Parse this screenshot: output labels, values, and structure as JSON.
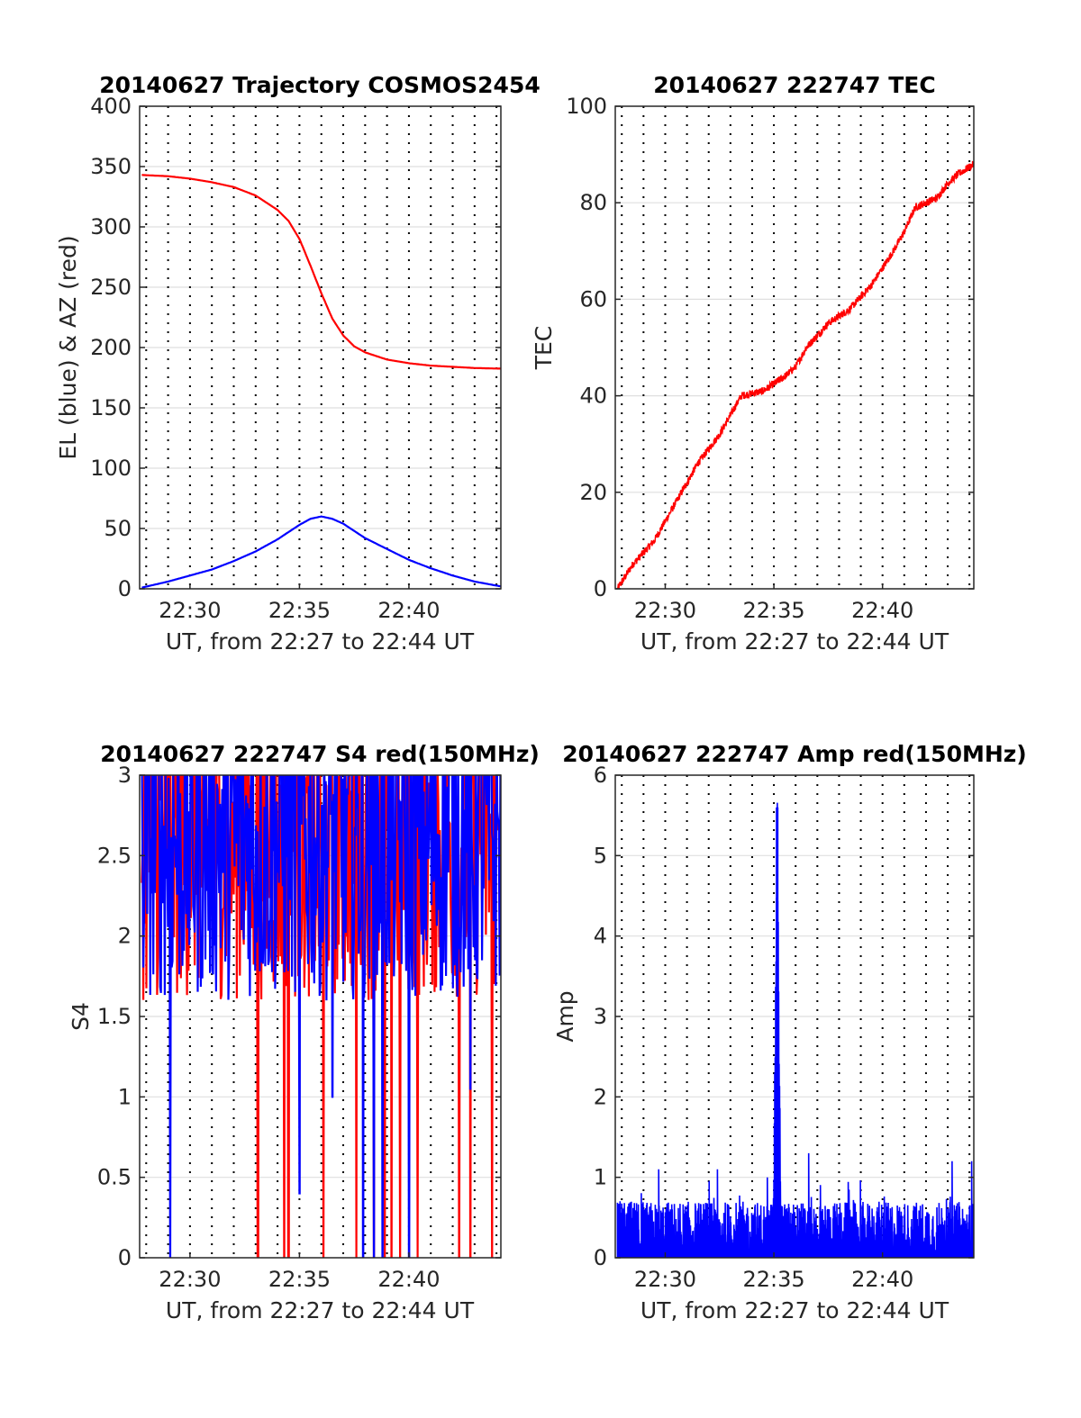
{
  "figure_background": "#ffffff",
  "colors": {
    "red_series": "#ff0000",
    "blue_series": "#0000ff",
    "axis": "#262626",
    "grid": "#262626"
  },
  "chart_data": [
    {
      "id": "trajectory",
      "type": "line",
      "title": "20140627 Trajectory COSMOS2454",
      "xlabel": "UT, from 22:27 to 22:44 UT",
      "ylabel": "EL (blue) & AZ (red)",
      "x_unit": "minutes after 22:00 UT",
      "xlim": [
        27.7,
        44.2
      ],
      "ylim": [
        0,
        400
      ],
      "yticks": [
        0,
        50,
        100,
        150,
        200,
        250,
        300,
        350,
        400
      ],
      "ytick_labels": [
        "0",
        "50",
        "100",
        "150",
        "200",
        "250",
        "300",
        "350",
        "400"
      ],
      "xticks": [
        30,
        35,
        40
      ],
      "xtick_labels": [
        "22:30",
        "22:35",
        "22:40"
      ],
      "grid": {
        "y": "solid",
        "x": "dotted",
        "x_dotted_every_min": 1
      },
      "series": [
        {
          "name": "AZ (red)",
          "color": "#ff0000",
          "x": [
            27.8,
            29,
            30,
            31,
            32,
            33,
            34,
            34.5,
            35,
            35.5,
            36,
            36.5,
            37,
            37.5,
            38,
            39,
            40,
            41,
            42,
            43,
            44.2
          ],
          "y": [
            343,
            342,
            340,
            337,
            333,
            326,
            314,
            305,
            290,
            268,
            245,
            224,
            210,
            201,
            196,
            190,
            187,
            185,
            184,
            183,
            182.5
          ]
        },
        {
          "name": "EL (blue)",
          "color": "#0000ff",
          "x": [
            27.8,
            29,
            30,
            31,
            32,
            33,
            34,
            34.5,
            35,
            35.5,
            36,
            36.5,
            37,
            37.5,
            38,
            39,
            40,
            41,
            42,
            43,
            44.2
          ],
          "y": [
            1,
            6,
            11,
            16,
            23,
            31,
            41,
            47,
            53,
            58,
            60,
            58,
            54,
            48,
            42,
            33,
            24,
            17,
            11,
            6,
            2
          ]
        }
      ]
    },
    {
      "id": "tec",
      "type": "line",
      "title": "20140627 222747 TEC",
      "xlabel": "UT, from 22:27 to 22:44 UT",
      "ylabel": "TEC",
      "x_unit": "minutes after 22:00 UT",
      "xlim": [
        27.7,
        44.2
      ],
      "ylim": [
        0,
        100
      ],
      "yticks": [
        0,
        20,
        40,
        60,
        80,
        100
      ],
      "ytick_labels": [
        "0",
        "20",
        "40",
        "60",
        "80",
        "100"
      ],
      "xticks": [
        30,
        35,
        40
      ],
      "xtick_labels": [
        "22:30",
        "22:35",
        "22:40"
      ],
      "grid": {
        "y": "solid",
        "x": "dotted",
        "x_dotted_every_min": 1
      },
      "series": [
        {
          "color": "#ff0000",
          "noise_amplitude": 0.8,
          "x": [
            27.8,
            28.5,
            29.5,
            30.5,
            31.5,
            32.5,
            33,
            33.5,
            34.5,
            35.5,
            36,
            36.5,
            37.5,
            38.5,
            39.5,
            40.5,
            41,
            41.5,
            42.5,
            43,
            43.5,
            44.2
          ],
          "y": [
            0,
            5,
            10,
            18,
            26,
            32,
            36,
            40,
            41,
            44,
            46,
            50,
            55,
            58,
            63,
            70,
            74,
            79,
            81,
            84,
            86,
            88
          ]
        }
      ]
    },
    {
      "id": "s4",
      "type": "line",
      "title": "20140627 222747 S4 red(150MHz)",
      "xlabel": "UT, from 22:27 to 22:44 UT",
      "ylabel": "S4",
      "x_unit": "minutes after 22:00 UT",
      "xlim": [
        27.7,
        44.2
      ],
      "ylim": [
        0,
        3
      ],
      "yticks": [
        0,
        0.5,
        1,
        1.5,
        2,
        2.5,
        3
      ],
      "ytick_labels": [
        "0",
        "0.5",
        "1",
        "1.5",
        "2",
        "2.5",
        "3"
      ],
      "xticks": [
        30,
        35,
        40
      ],
      "xtick_labels": [
        "22:30",
        "22:35",
        "22:40"
      ],
      "grid": {
        "y": "solid",
        "x": "dotted",
        "x_dotted_every_min": 1
      },
      "series": [
        {
          "name": "150MHz",
          "color": "#ff0000",
          "values_range": [
            1.6,
            3
          ],
          "dropouts_to_zero_at": [
            33.1,
            34.3,
            34.5,
            36.1,
            37.6,
            38.4,
            38.9,
            39.2,
            39.6,
            40.4,
            42.3,
            42.8,
            43.8
          ]
        },
        {
          "color": "#0000ff",
          "values_range": [
            1.6,
            3
          ],
          "dips": [
            {
              "x": 29.1,
              "y": 0
            },
            {
              "x": 35.0,
              "y": 0.4
            },
            {
              "x": 36.5,
              "y": 1.0
            },
            {
              "x": 37.9,
              "y": 0
            },
            {
              "x": 38.4,
              "y": 0
            },
            {
              "x": 38.8,
              "y": 0
            },
            {
              "x": 40.0,
              "y": 0
            },
            {
              "x": 42.8,
              "y": 1.05
            }
          ]
        }
      ]
    },
    {
      "id": "amp",
      "type": "line",
      "title": "20140627 222747 Amp red(150MHz)",
      "xlabel": "UT, from 22:27 to 22:44 UT",
      "ylabel": "Amp",
      "x_unit": "minutes after 22:00 UT",
      "xlim": [
        27.7,
        44.2
      ],
      "ylim": [
        0,
        6
      ],
      "yticks": [
        0,
        1,
        2,
        3,
        4,
        5,
        6
      ],
      "ytick_labels": [
        "0",
        "1",
        "2",
        "3",
        "4",
        "5",
        "6"
      ],
      "xticks": [
        30,
        35,
        40
      ],
      "xtick_labels": [
        "22:30",
        "22:35",
        "22:40"
      ],
      "grid": {
        "y": "solid",
        "x": "dotted",
        "x_dotted_every_min": 1
      },
      "series": [
        {
          "name": "150MHz",
          "color": "#0000ff",
          "baseline_max": 0.7,
          "spike": {
            "x": 35.15,
            "y_max": 5.6
          },
          "peaks": [
            {
              "x": 29.7,
              "y": 1.1
            },
            {
              "x": 32.4,
              "y": 1.1
            },
            {
              "x": 34.7,
              "y": 1.0
            },
            {
              "x": 36.6,
              "y": 1.3
            },
            {
              "x": 43.2,
              "y": 1.2
            },
            {
              "x": 44.1,
              "y": 1.2
            }
          ]
        }
      ]
    }
  ]
}
